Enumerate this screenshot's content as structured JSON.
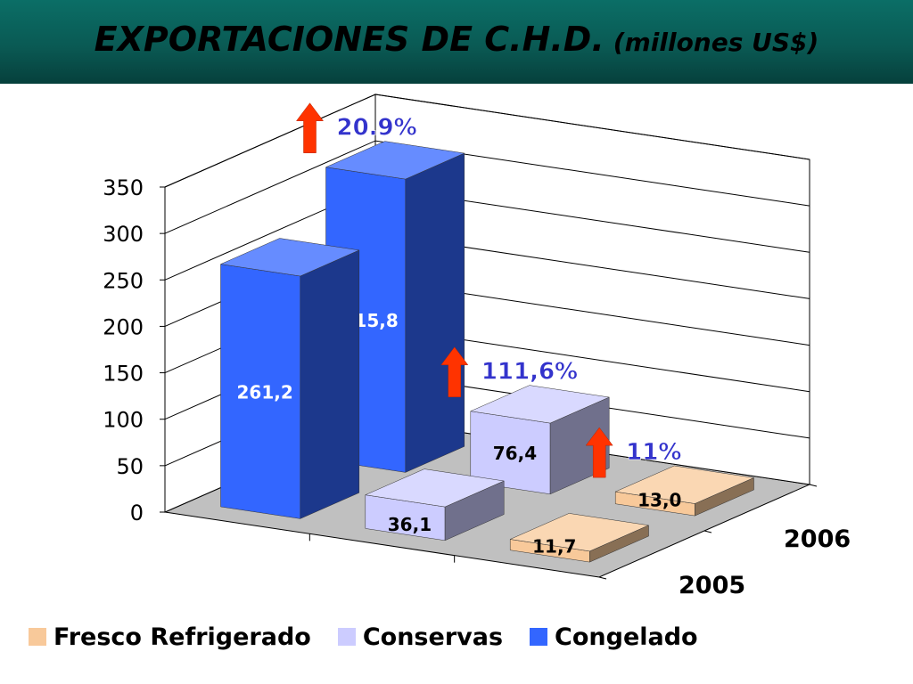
{
  "title": {
    "main": "EXPORTACIONES DE C.H.D.",
    "sub": "(millones US$)"
  },
  "chart_data": {
    "type": "bar",
    "variant": "3d-column",
    "yticks": [
      "0",
      "50",
      "100",
      "150",
      "200",
      "250",
      "300",
      "350"
    ],
    "ylim": [
      0,
      350
    ],
    "grid": true,
    "depth_categories": [
      "2005",
      "2006"
    ],
    "series": [
      {
        "name": "Congelado",
        "color": "#3366ff",
        "values": [
          261.2,
          315.8
        ],
        "labels": [
          "261,2",
          "315,8"
        ]
      },
      {
        "name": "Conservas",
        "color": "#ccccff",
        "values": [
          36.1,
          76.4
        ],
        "labels": [
          "36,1",
          "76,4"
        ]
      },
      {
        "name": "Fresco Refrigerado",
        "color": "#f8c99a",
        "values": [
          11.7,
          13.0
        ],
        "labels": [
          "11,7",
          "13,0"
        ]
      }
    ],
    "growth_annotations": [
      {
        "series": "Congelado",
        "text": "20.9%"
      },
      {
        "series": "Conservas",
        "text": "111,6%"
      },
      {
        "series": "Fresco Refrigerado",
        "text": "11%"
      }
    ],
    "legend": {
      "position": "bottom",
      "items": [
        {
          "name": "Fresco Refrigerado",
          "color": "#f8c99a"
        },
        {
          "name": "Conservas",
          "color": "#ccccff"
        },
        {
          "name": "Congelado",
          "color": "#3366ff"
        }
      ]
    }
  },
  "colors": {
    "header": "#0a5a54",
    "arrow": "#ff3300",
    "annotation": "#3333cc",
    "floor": "#c0c0c0"
  }
}
